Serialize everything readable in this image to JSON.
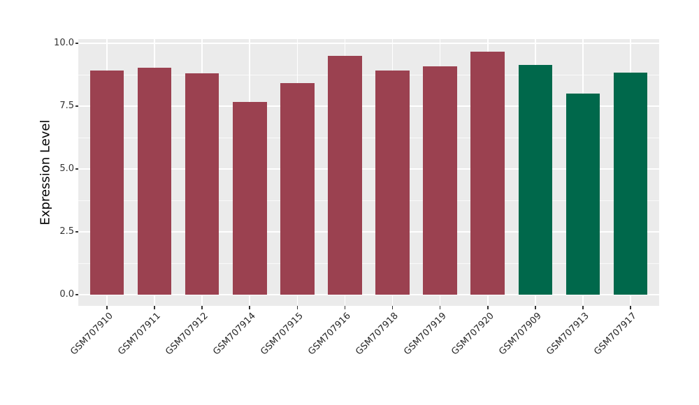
{
  "figure": {
    "background_color": "#FFFFFF",
    "panel_background_color": "#EBEBEB",
    "gridline_color": "#FFFFFF",
    "axis_text_color": "#333333",
    "axis_title_color": "#000000",
    "tick_mark_color": "#333333"
  },
  "y_axis": {
    "title": "Expression Level",
    "tick_labels": [
      "0.0",
      "2.5",
      "5.0",
      "7.5",
      "10.0"
    ],
    "tick_values": [
      0,
      2.5,
      5,
      7.5,
      10
    ]
  },
  "x_axis": {
    "tick_label_rotation_deg": 45
  },
  "chart_data": {
    "type": "bar",
    "title": "",
    "xlabel": "",
    "ylabel": "Expression Level",
    "categories": [
      "GSM707910",
      "GSM707911",
      "GSM707912",
      "GSM707914",
      "GSM707915",
      "GSM707916",
      "GSM707918",
      "GSM707919",
      "GSM707920",
      "GSM707909",
      "GSM707913",
      "GSM707917"
    ],
    "values": [
      8.91,
      9.04,
      8.81,
      7.67,
      8.42,
      9.49,
      8.92,
      9.07,
      9.67,
      9.15,
      7.99,
      8.84
    ],
    "bar_groups": [
      "red",
      "red",
      "red",
      "red",
      "red",
      "red",
      "red",
      "red",
      "red",
      "green",
      "green",
      "green"
    ],
    "group_colors": {
      "red": "#9B4150",
      "green": "#00684B"
    },
    "ylim": [
      -0.49,
      10.15
    ],
    "yticks": [
      0,
      2.5,
      5,
      7.5,
      10
    ],
    "grid": true,
    "legend": false,
    "bar_width_fraction": 0.715
  }
}
